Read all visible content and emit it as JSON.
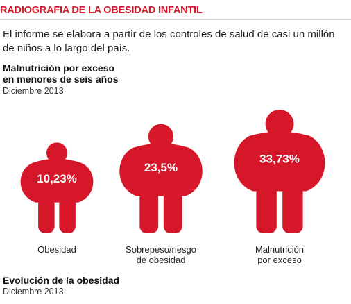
{
  "header": {
    "title": "RADIOGRAFIA DE LA OBESIDAD INFANTIL",
    "intro": "El informe se elabora a partir de los controles de salud de casi un millón de niños a lo largo del país."
  },
  "section_1": {
    "title_line1": "Malnutrición por exceso",
    "title_line2": "en menores de seis años",
    "subtitle": "Diciembre 2013"
  },
  "section_2": {
    "title": "Evolución de la obesidad",
    "subtitle": "Diciembre 2013"
  },
  "colors": {
    "accent": "#d6172a",
    "figure": "#d6172a"
  },
  "chart_data": {
    "type": "bar",
    "categories": [
      [
        "Obesidad"
      ],
      [
        "Sobrepeso/riesgo",
        "de obesidad"
      ],
      [
        "Malnutrición",
        "por exceso"
      ]
    ],
    "values": [
      10.23,
      23.5,
      33.73
    ],
    "labels": [
      "10,23%",
      "23,5%",
      "33,73%"
    ],
    "unit": "%",
    "title": "Malnutrición por exceso en menores de seis años",
    "subtitle": "Diciembre 2013"
  }
}
